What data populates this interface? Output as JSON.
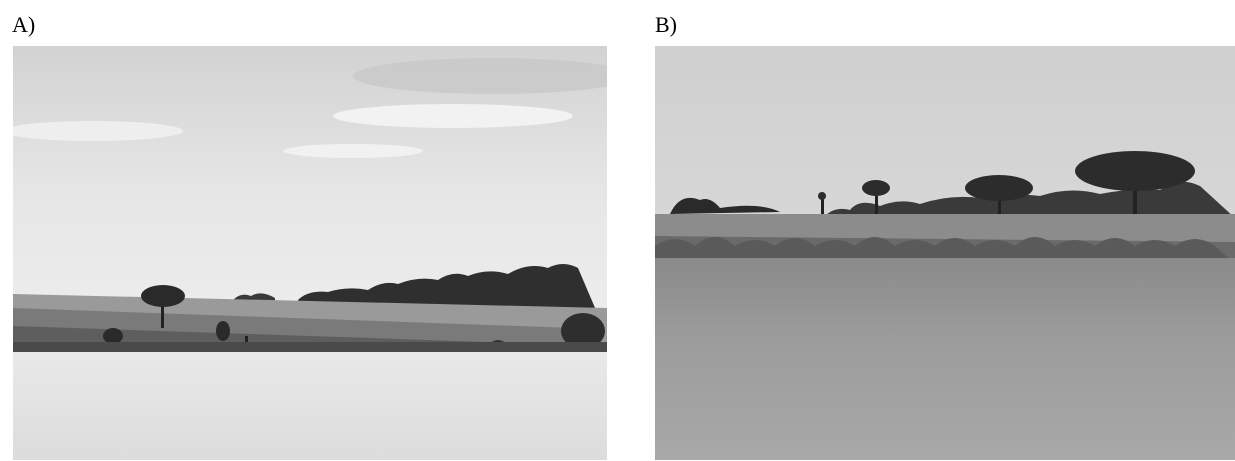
{
  "panels": [
    {
      "label": "A)",
      "icon": "landscape-photo-grayscale"
    },
    {
      "label": "B)",
      "icon": "landscape-photo-grayscale"
    }
  ]
}
